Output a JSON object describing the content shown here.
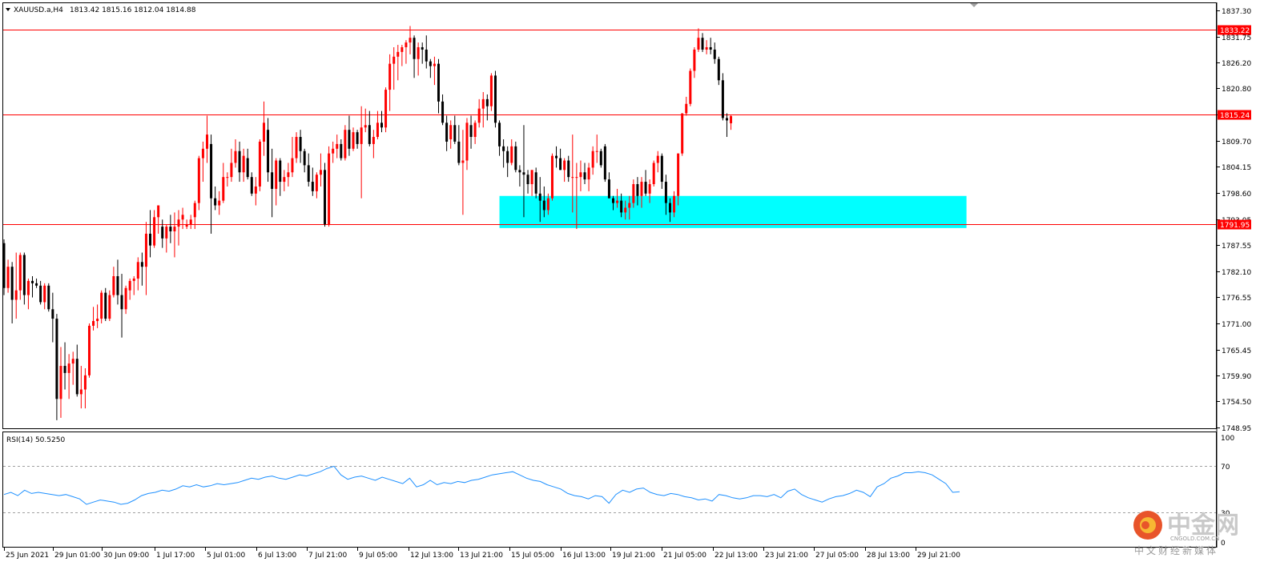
{
  "header": {
    "symbol_menu_arrow": "triangle-down-icon",
    "title": "XAUUSD.a,H4",
    "ohlc": "1813.42 1815.16 1812.04 1814.88"
  },
  "rsi_panel": {
    "label": "RSI(14) 50.5250",
    "levels": [
      "100",
      "70",
      "30",
      "0"
    ]
  },
  "price_axis_labels": [
    "1837.30",
    "1831.75",
    "1826.20",
    "1820.80",
    "1815.25",
    "1809.70",
    "1804.15",
    "1798.60",
    "1793.05",
    "1787.55",
    "1782.10",
    "1776.55",
    "1771.00",
    "1765.45",
    "1759.90",
    "1754.50",
    "1748.95"
  ],
  "time_axis_labels": [
    "25 Jun 2021",
    "29 Jun 01:00",
    "30 Jun 09:00",
    "1 Jul 17:00",
    "5 Jul 01:00",
    "6 Jul 13:00",
    "7 Jul 21:00",
    "9 Jul 05:00",
    "12 Jul 13:00",
    "13 Jul 21:00",
    "15 Jul 05:00",
    "16 Jul 13:00",
    "19 Jul 21:00",
    "21 Jul 05:00",
    "22 Jul 13:00",
    "23 Jul 21:00",
    "27 Jul 05:00",
    "28 Jul 13:00",
    "29 Jul 21:00"
  ],
  "hlines": [
    {
      "price": 1833.22,
      "label": "1833.22"
    },
    {
      "price": 1815.24,
      "label": "1815.24"
    },
    {
      "price": 1791.95,
      "label": "1791.95"
    }
  ],
  "zone": {
    "price_top": 1798.0,
    "price_bottom": 1791.2,
    "bar_from": 122,
    "bar_to": 237
  },
  "watermark": {
    "chinese": "中金网",
    "site": "CNGOLD.COM.CN",
    "slogan": "中文财经新媒体"
  },
  "colors": {
    "up": "#ff0000",
    "down": "#000000",
    "line": "#ff0000",
    "zone": "#00ffff",
    "rsi": "#1e90ff"
  },
  "chart_data": {
    "type": "candlestick",
    "timeframe": "H4",
    "symbol": "XAUUSD.a",
    "ylim": [
      1748.95,
      1837.3
    ],
    "ohlc": [
      [
        1788.0,
        1788.8,
        1777.0,
        1778.5
      ],
      [
        1778.5,
        1784.5,
        1777.5,
        1783.0
      ],
      [
        1783.0,
        1784.0,
        1771.0,
        1776.0
      ],
      [
        1776.0,
        1786.0,
        1772.0,
        1778.0
      ],
      [
        1778.0,
        1786.0,
        1776.0,
        1785.5
      ],
      [
        1785.5,
        1786.0,
        1775.0,
        1777.0
      ],
      [
        1777.0,
        1780.5,
        1774.0,
        1780.0
      ],
      [
        1780.0,
        1781.0,
        1776.5,
        1779.5
      ],
      [
        1779.5,
        1780.5,
        1778.5,
        1779.0
      ],
      [
        1779.0,
        1780.0,
        1775.0,
        1775.5
      ],
      [
        1775.5,
        1779.5,
        1774.0,
        1779.0
      ],
      [
        1779.0,
        1779.5,
        1773.5,
        1774.0
      ],
      [
        1774.0,
        1777.5,
        1767.0,
        1772.0
      ],
      [
        1772.0,
        1773.0,
        1750.5,
        1755.0
      ],
      [
        1755.0,
        1766.0,
        1751.0,
        1762.0
      ],
      [
        1762.0,
        1767.0,
        1757.0,
        1760.5
      ],
      [
        1760.5,
        1764.5,
        1755.0,
        1762.5
      ],
      [
        1762.5,
        1765.0,
        1758.0,
        1763.5
      ],
      [
        1763.5,
        1766.5,
        1755.5,
        1756.0
      ],
      [
        1756.0,
        1762.0,
        1753.0,
        1757.0
      ],
      [
        1757.0,
        1761.5,
        1753.0,
        1760.0
      ],
      [
        1760.0,
        1771.0,
        1759.5,
        1770.5
      ],
      [
        1770.5,
        1774.5,
        1769.5,
        1771.5
      ],
      [
        1771.5,
        1775.0,
        1770.0,
        1772.0
      ],
      [
        1772.0,
        1778.0,
        1771.0,
        1777.5
      ],
      [
        1777.5,
        1778.5,
        1771.5,
        1772.0
      ],
      [
        1772.0,
        1778.0,
        1771.5,
        1777.0
      ],
      [
        1777.0,
        1783.0,
        1776.5,
        1781.0
      ],
      [
        1781.0,
        1784.5,
        1775.0,
        1777.0
      ],
      [
        1777.0,
        1781.5,
        1768.0,
        1774.0
      ],
      [
        1774.0,
        1779.0,
        1773.0,
        1778.5
      ],
      [
        1778.0,
        1780.5,
        1776.0,
        1780.0
      ],
      [
        1780.0,
        1781.0,
        1777.0,
        1780.5
      ],
      [
        1780.5,
        1785.0,
        1778.0,
        1784.0
      ],
      [
        1784.0,
        1786.0,
        1779.0,
        1783.0
      ],
      [
        1783.0,
        1792.5,
        1777.0,
        1790.0
      ],
      [
        1790.0,
        1795.0,
        1785.0,
        1787.5
      ],
      [
        1787.5,
        1795.0,
        1787.0,
        1793.5
      ],
      [
        1793.5,
        1796.0,
        1790.0,
        1796.0
      ],
      [
        1791.5,
        1793.0,
        1787.0,
        1789.0
      ],
      [
        1789.0,
        1792.0,
        1786.0,
        1791.5
      ],
      [
        1791.5,
        1794.0,
        1788.0,
        1790.5
      ],
      [
        1790.5,
        1794.5,
        1785.0,
        1791.5
      ],
      [
        1791.5,
        1795.0,
        1787.5,
        1793.0
      ],
      [
        1793.0,
        1795.5,
        1791.0,
        1794.0
      ],
      [
        1791.5,
        1793.0,
        1791.0,
        1792.0
      ],
      [
        1792.0,
        1794.0,
        1791.0,
        1793.0
      ],
      [
        1793.5,
        1797.0,
        1791.0,
        1796.5
      ],
      [
        1796.5,
        1806.5,
        1795.0,
        1806.0
      ],
      [
        1806.0,
        1809.5,
        1801.0,
        1808.0
      ],
      [
        1808.0,
        1815.0,
        1805.0,
        1811.0
      ],
      [
        1809.0,
        1811.0,
        1790.0,
        1797.5
      ],
      [
        1797.5,
        1800.0,
        1795.0,
        1796.0
      ],
      [
        1796.0,
        1799.0,
        1794.0,
        1797.0
      ],
      [
        1797.0,
        1805.0,
        1796.5,
        1802.0
      ],
      [
        1802.0,
        1803.0,
        1800.0,
        1802.0
      ],
      [
        1802.0,
        1808.0,
        1801.0,
        1805.0
      ],
      [
        1805.0,
        1810.0,
        1804.0,
        1807.5
      ],
      [
        1807.5,
        1809.5,
        1801.0,
        1803.0
      ],
      [
        1803.0,
        1808.0,
        1801.0,
        1806.5
      ],
      [
        1806.0,
        1808.0,
        1801.5,
        1802.0
      ],
      [
        1802.0,
        1803.0,
        1798.0,
        1798.5
      ],
      [
        1798.5,
        1802.0,
        1796.0,
        1800.0
      ],
      [
        1800.0,
        1810.0,
        1799.0,
        1809.5
      ],
      [
        1809.5,
        1818.0,
        1806.5,
        1813.5
      ],
      [
        1812.0,
        1814.5,
        1801.0,
        1803.0
      ],
      [
        1803.0,
        1808.0,
        1793.5,
        1799.5
      ],
      [
        1799.5,
        1806.0,
        1796.0,
        1805.5
      ],
      [
        1805.5,
        1806.0,
        1798.0,
        1801.0
      ],
      [
        1801.0,
        1803.5,
        1799.0,
        1802.0
      ],
      [
        1802.0,
        1805.0,
        1800.0,
        1803.0
      ],
      [
        1803.0,
        1810.5,
        1802.0,
        1806.0
      ],
      [
        1806.0,
        1811.5,
        1805.0,
        1810.5
      ],
      [
        1810.5,
        1812.0,
        1805.0,
        1807.5
      ],
      [
        1807.5,
        1808.0,
        1803.0,
        1804.5
      ],
      [
        1804.5,
        1807.0,
        1800.0,
        1801.0
      ],
      [
        1801.0,
        1804.0,
        1798.0,
        1799.0
      ],
      [
        1799.0,
        1803.0,
        1797.5,
        1802.5
      ],
      [
        1802.5,
        1807.0,
        1800.0,
        1803.5
      ],
      [
        1803.5,
        1805.0,
        1791.5,
        1792.0
      ],
      [
        1792.0,
        1808.5,
        1791.5,
        1807.0
      ],
      [
        1807.0,
        1809.5,
        1805.0,
        1808.0
      ],
      [
        1808.0,
        1811.0,
        1806.0,
        1809.0
      ],
      [
        1809.0,
        1810.0,
        1805.5,
        1806.0
      ],
      [
        1806.0,
        1813.0,
        1805.5,
        1812.0
      ],
      [
        1812.0,
        1815.0,
        1806.5,
        1808.0
      ],
      [
        1808.0,
        1812.5,
        1807.5,
        1811.5
      ],
      [
        1811.5,
        1812.0,
        1808.0,
        1809.0
      ],
      [
        1809.0,
        1817.0,
        1797.5,
        1812.5
      ],
      [
        1812.5,
        1816.5,
        1811.5,
        1813.0
      ],
      [
        1813.0,
        1816.0,
        1808.5,
        1809.0
      ],
      [
        1809.0,
        1812.0,
        1806.0,
        1810.5
      ],
      [
        1810.5,
        1816.0,
        1810.0,
        1813.5
      ],
      [
        1813.5,
        1816.0,
        1811.5,
        1812.5
      ],
      [
        1812.5,
        1821.0,
        1811.5,
        1820.5
      ],
      [
        1820.5,
        1828.0,
        1816.0,
        1826.0
      ],
      [
        1826.0,
        1829.5,
        1820.5,
        1827.5
      ],
      [
        1827.5,
        1830.0,
        1822.5,
        1828.5
      ],
      [
        1828.5,
        1830.0,
        1825.5,
        1829.5
      ],
      [
        1829.5,
        1831.0,
        1826.0,
        1830.5
      ],
      [
        1830.5,
        1834.0,
        1828.0,
        1831.5
      ],
      [
        1831.5,
        1832.0,
        1823.0,
        1827.0
      ],
      [
        1827.0,
        1830.5,
        1823.5,
        1829.5
      ],
      [
        1829.5,
        1830.5,
        1826.0,
        1829.0
      ],
      [
        1829.0,
        1832.0,
        1825.0,
        1826.5
      ],
      [
        1826.5,
        1827.0,
        1823.0,
        1825.5
      ],
      [
        1825.5,
        1827.5,
        1821.5,
        1826.0
      ],
      [
        1826.0,
        1827.0,
        1815.5,
        1818.0
      ],
      [
        1818.0,
        1819.5,
        1813.0,
        1813.5
      ],
      [
        1813.5,
        1815.0,
        1807.5,
        1809.5
      ],
      [
        1810.0,
        1814.0,
        1808.0,
        1813.0
      ],
      [
        1813.0,
        1815.0,
        1809.0,
        1809.5
      ],
      [
        1809.5,
        1813.0,
        1804.5,
        1805.0
      ],
      [
        1805.0,
        1812.0,
        1794.0,
        1805.5
      ],
      [
        1805.5,
        1814.5,
        1803.5,
        1813.5
      ],
      [
        1813.0,
        1815.0,
        1808.0,
        1810.5
      ],
      [
        1810.5,
        1814.0,
        1809.0,
        1813.5
      ],
      [
        1813.5,
        1818.5,
        1812.5,
        1816.5
      ],
      [
        1816.5,
        1820.0,
        1812.5,
        1818.5
      ],
      [
        1818.5,
        1819.5,
        1814.0,
        1817.0
      ],
      [
        1817.0,
        1824.0,
        1816.0,
        1823.5
      ],
      [
        1823.5,
        1824.5,
        1812.5,
        1813.5
      ],
      [
        1813.5,
        1814.0,
        1806.5,
        1808.5
      ],
      [
        1808.5,
        1810.0,
        1804.0,
        1807.5
      ],
      [
        1807.5,
        1808.5,
        1802.0,
        1805.0
      ],
      [
        1805.0,
        1810.0,
        1804.5,
        1808.5
      ],
      [
        1808.5,
        1809.5,
        1803.0,
        1803.5
      ],
      [
        1803.5,
        1804.5,
        1800.0,
        1803.0
      ],
      [
        1803.0,
        1813.0,
        1793.5,
        1802.5
      ],
      [
        1802.5,
        1803.5,
        1798.5,
        1800.5
      ],
      [
        1800.5,
        1803.5,
        1798.0,
        1803.5
      ],
      [
        1803.0,
        1804.0,
        1797.5,
        1798.5
      ],
      [
        1798.5,
        1802.0,
        1792.5,
        1797.0
      ],
      [
        1797.0,
        1800.0,
        1793.5,
        1795.0
      ],
      [
        1795.0,
        1798.5,
        1794.0,
        1797.5
      ],
      [
        1797.5,
        1807.0,
        1797.0,
        1806.5
      ],
      [
        1806.5,
        1808.5,
        1804.0,
        1806.0
      ],
      [
        1806.0,
        1808.0,
        1803.5,
        1803.5
      ],
      [
        1803.5,
        1806.0,
        1801.0,
        1805.5
      ],
      [
        1805.5,
        1806.5,
        1801.0,
        1802.0
      ],
      [
        1802.0,
        1811.0,
        1794.5,
        1802.0
      ],
      [
        1802.0,
        1805.0,
        1791.0,
        1802.0
      ],
      [
        1802.0,
        1805.5,
        1799.0,
        1803.0
      ],
      [
        1803.0,
        1805.0,
        1800.5,
        1801.5
      ],
      [
        1801.5,
        1805.0,
        1799.0,
        1804.0
      ],
      [
        1804.0,
        1808.5,
        1802.5,
        1807.5
      ],
      [
        1807.5,
        1811.0,
        1805.0,
        1807.5
      ],
      [
        1807.5,
        1808.0,
        1804.0,
        1804.5
      ],
      [
        1808.5,
        1809.0,
        1801.0,
        1801.5
      ],
      [
        1801.5,
        1803.0,
        1797.5,
        1797.5
      ],
      [
        1797.5,
        1798.0,
        1795.0,
        1796.5
      ],
      [
        1796.5,
        1799.5,
        1795.5,
        1797.0
      ],
      [
        1797.0,
        1798.5,
        1793.5,
        1794.5
      ],
      [
        1794.5,
        1797.0,
        1793.0,
        1795.5
      ],
      [
        1795.5,
        1798.0,
        1793.0,
        1796.5
      ],
      [
        1796.5,
        1801.5,
        1795.5,
        1800.5
      ],
      [
        1800.5,
        1802.0,
        1796.0,
        1798.0
      ],
      [
        1798.0,
        1802.0,
        1795.5,
        1801.0
      ],
      [
        1801.0,
        1803.5,
        1798.0,
        1798.5
      ],
      [
        1798.5,
        1801.5,
        1796.5,
        1800.5
      ],
      [
        1800.5,
        1805.5,
        1800.0,
        1805.0
      ],
      [
        1805.0,
        1807.5,
        1803.0,
        1806.5
      ],
      [
        1806.5,
        1807.0,
        1799.5,
        1801.0
      ],
      [
        1801.0,
        1802.5,
        1794.0,
        1796.5
      ],
      [
        1796.5,
        1797.5,
        1792.5,
        1794.5
      ],
      [
        1794.5,
        1799.0,
        1793.5,
        1798.0
      ],
      [
        1798.0,
        1807.0,
        1796.0,
        1807.0
      ],
      [
        1807.0,
        1815.5,
        1806.5,
        1815.5
      ],
      [
        1815.5,
        1819.0,
        1815.0,
        1817.5
      ],
      [
        1817.5,
        1825.0,
        1817.0,
        1824.5
      ],
      [
        1824.5,
        1829.5,
        1823.0,
        1829.0
      ],
      [
        1829.0,
        1833.5,
        1828.5,
        1831.5
      ],
      [
        1831.5,
        1832.5,
        1828.5,
        1829.0
      ],
      [
        1829.0,
        1831.0,
        1828.0,
        1829.5
      ],
      [
        1829.5,
        1831.5,
        1828.0,
        1829.0
      ],
      [
        1829.0,
        1830.5,
        1826.0,
        1827.0
      ],
      [
        1827.0,
        1827.5,
        1821.5,
        1822.5
      ],
      [
        1822.5,
        1824.0,
        1814.0,
        1814.5
      ],
      [
        1814.5,
        1815.5,
        1810.5,
        1814.0
      ],
      [
        1813.4,
        1815.2,
        1812.0,
        1814.9
      ]
    ],
    "rsi": {
      "name": "RSI(14)",
      "current": 50.525,
      "levels": [
        70,
        30
      ],
      "values": [
        48,
        50,
        47,
        52,
        49,
        50,
        49,
        48,
        47,
        48,
        46,
        44,
        39,
        41,
        43,
        42,
        41,
        39,
        40,
        43,
        47,
        49,
        50,
        52,
        51,
        53,
        56,
        55,
        57,
        55,
        56,
        58,
        57,
        58,
        59,
        61,
        63,
        62,
        64,
        65,
        63,
        62,
        64,
        66,
        65,
        67,
        69,
        72,
        74,
        66,
        62,
        64,
        65,
        63,
        61,
        64,
        62,
        60,
        58,
        63,
        55,
        57,
        61,
        57,
        59,
        58,
        60,
        59,
        61,
        62,
        64,
        66,
        67,
        68,
        69,
        66,
        63,
        61,
        60,
        57,
        55,
        53,
        49,
        47,
        46,
        44,
        47,
        46,
        40,
        48,
        52,
        50,
        53,
        54,
        50,
        48,
        47,
        49,
        48,
        46,
        45,
        43,
        44,
        42,
        48,
        47,
        45,
        44,
        45,
        47,
        47,
        46,
        48,
        45,
        51,
        53,
        48,
        45,
        43,
        41,
        44,
        46,
        47,
        49,
        52,
        50,
        46,
        55,
        58,
        63,
        65,
        68,
        68,
        69,
        68,
        66,
        62,
        58,
        50,
        50.5
      ]
    }
  }
}
